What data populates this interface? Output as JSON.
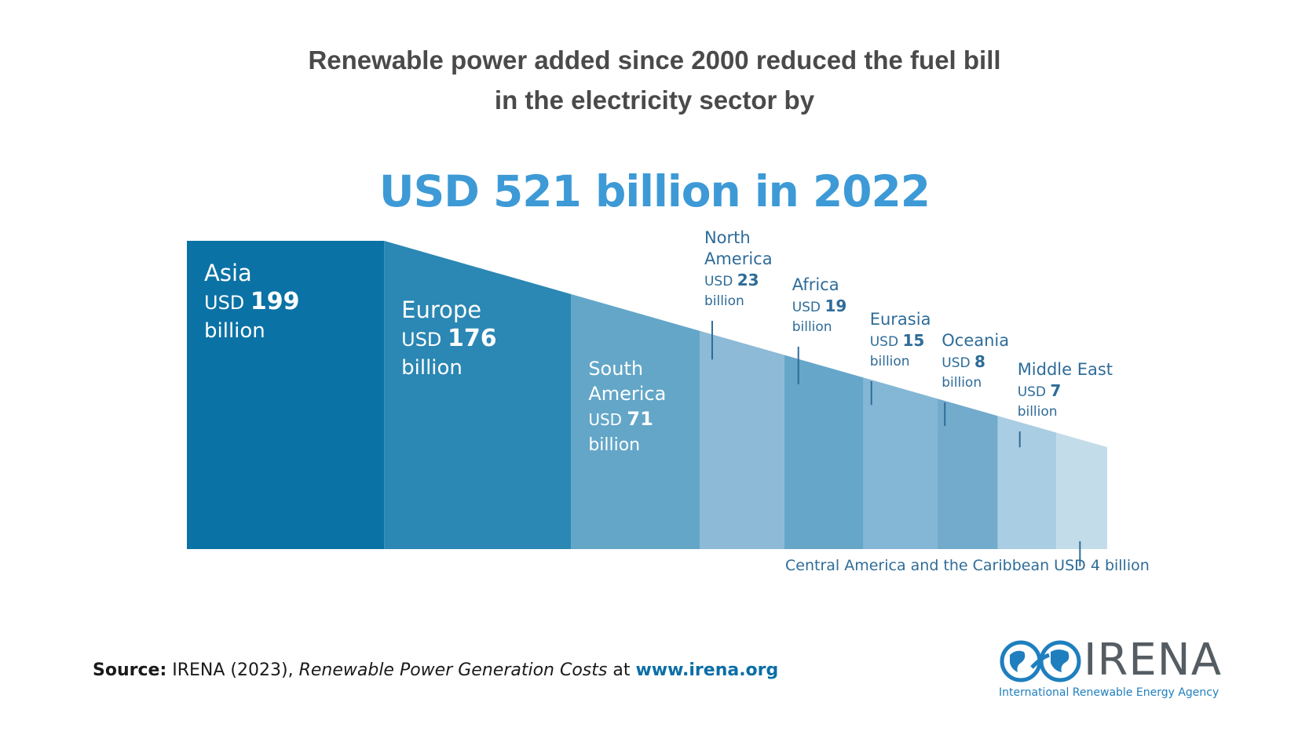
{
  "title": {
    "line1": "Renewable power added since 2000 reduced the fuel bill",
    "line2": "in the electricity sector by"
  },
  "headline": "USD 521 billion in 2022",
  "chart_data": {
    "type": "bar",
    "unit": "USD billion",
    "total": 521,
    "year": 2022,
    "categories": [
      "Asia",
      "Europe",
      "South America",
      "North America",
      "Africa",
      "Eurasia",
      "Oceania",
      "Middle East",
      "Central America and the Caribbean"
    ],
    "values": [
      199,
      176,
      71,
      23,
      19,
      15,
      8,
      7,
      4
    ],
    "colors": [
      "#0b72a5",
      "#2b87b3",
      "#63a6c8",
      "#8dbad6",
      "#66a6c9",
      "#84b7d6",
      "#72abcb",
      "#a9cde2",
      "#c3dce9"
    ],
    "labels": [
      {
        "region": [
          "Asia"
        ],
        "prefix": "USD",
        "value": "199",
        "suffix": "billion"
      },
      {
        "region": [
          "Europe"
        ],
        "prefix": "USD",
        "value": "176",
        "suffix": "billion"
      },
      {
        "region": [
          "South",
          "America"
        ],
        "prefix": "USD",
        "value": "71",
        "suffix": "billion"
      },
      {
        "region": [
          "North",
          "America"
        ],
        "prefix": "USD",
        "value": "23",
        "suffix": "billion"
      },
      {
        "region": [
          "Africa"
        ],
        "prefix": "USD",
        "value": "19",
        "suffix": "billion"
      },
      {
        "region": [
          "Eurasia"
        ],
        "prefix": "USD",
        "value": "15",
        "suffix": "billion"
      },
      {
        "region": [
          "Oceania"
        ],
        "prefix": "USD",
        "value": "8",
        "suffix": "billion"
      },
      {
        "region": [
          "Middle East"
        ],
        "prefix": "USD",
        "value": "7",
        "suffix": "billion"
      },
      {
        "region": [
          "Central America and the Caribbean"
        ],
        "prefix": "USD",
        "value": "4",
        "suffix": "billion"
      }
    ]
  },
  "source": {
    "label": "Source",
    "text": "IRENA (2023), ",
    "publication": "Renewable Power Generation Costs",
    "connector": " at ",
    "url": "www.irena.org"
  },
  "logo": {
    "word": "IRENA",
    "subtitle": "International Renewable Energy Agency"
  },
  "colors": {
    "headline": "#3d9ad6",
    "label_dark": "#2e6c98",
    "title": "#4a4a4a"
  }
}
